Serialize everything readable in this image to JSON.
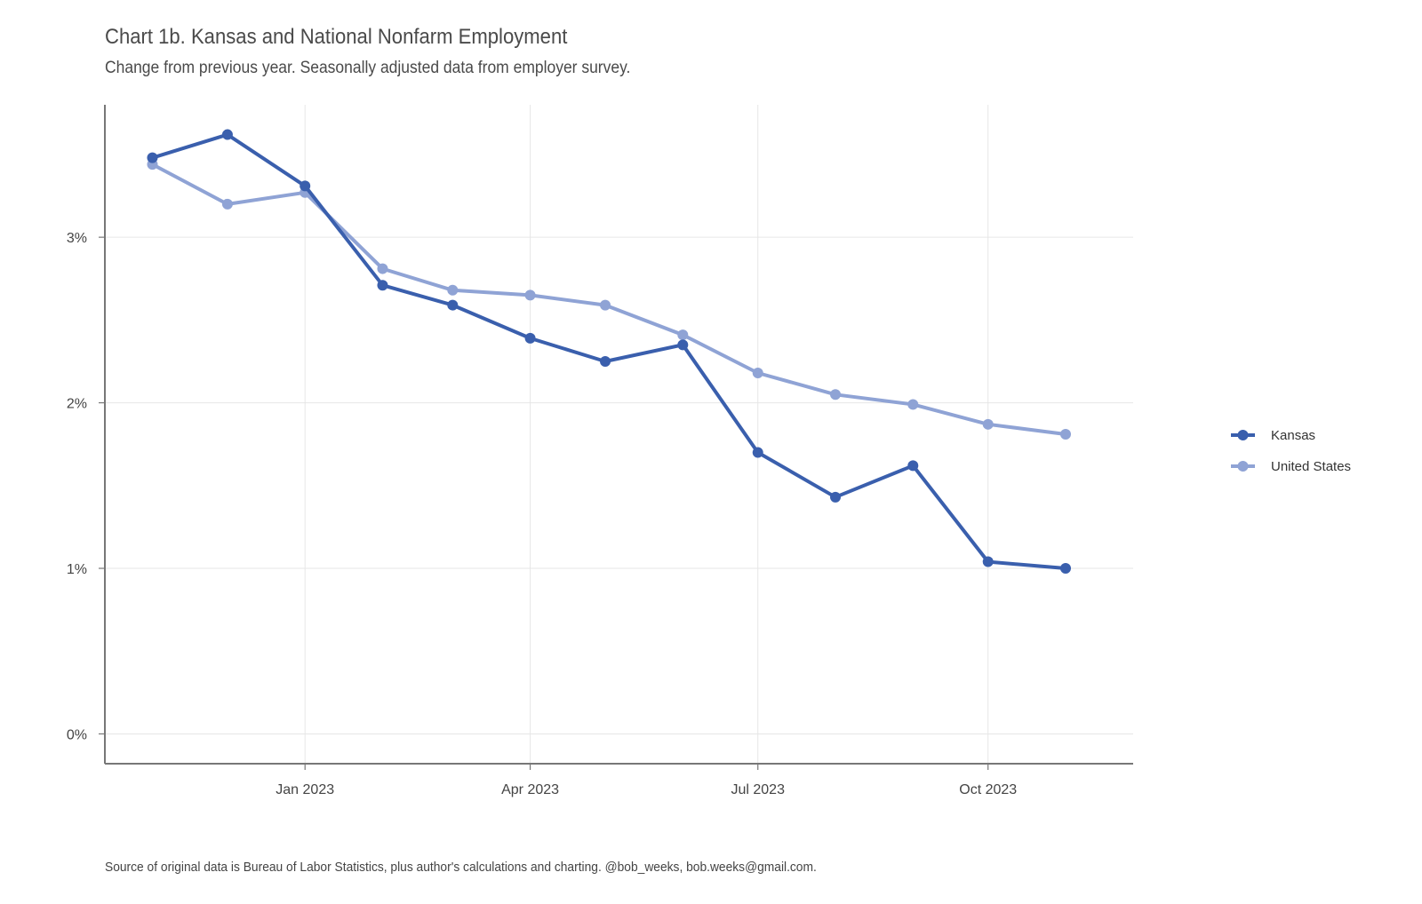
{
  "header": {
    "title": "Chart 1b. Kansas and National Nonfarm Employment",
    "subtitle": "Change from previous year. Seasonally adjusted data from employer survey."
  },
  "footer": {
    "caption": "Source of original data is Bureau of Labor Statistics, plus author's calculations and charting. @bob_weeks, bob.weeks@gmail.com."
  },
  "chart_data": {
    "type": "line",
    "x": [
      "2022-11",
      "2022-12",
      "2023-01",
      "2023-02",
      "2023-03",
      "2023-04",
      "2023-05",
      "2023-06",
      "2023-07",
      "2023-08",
      "2023-09",
      "2023-10",
      "2023-11"
    ],
    "series": [
      {
        "name": "Kansas",
        "color": "#3a5fad",
        "values": [
          3.48,
          3.62,
          3.31,
          2.71,
          2.59,
          2.39,
          2.25,
          2.35,
          1.7,
          1.43,
          1.62,
          1.04,
          1.0
        ]
      },
      {
        "name": "United States",
        "color": "#8fa3d5",
        "values": [
          3.44,
          3.2,
          3.27,
          2.81,
          2.68,
          2.65,
          2.59,
          2.41,
          2.18,
          2.05,
          1.99,
          1.87,
          1.81
        ]
      }
    ],
    "ylim": [
      -0.18,
      3.8
    ],
    "yticks": [
      0,
      1,
      2,
      3
    ],
    "ytick_labels": [
      "0%",
      "1%",
      "2%",
      "3%"
    ],
    "xticks": [
      "2023-01",
      "2023-04",
      "2023-07",
      "2023-10"
    ],
    "xtick_labels": [
      "Jan 2023",
      "Apr 2023",
      "Jul 2023",
      "Oct 2023"
    ],
    "xlim": [
      "2022-10-13",
      "2023-11-28"
    ],
    "grid": true,
    "legend": "right"
  }
}
